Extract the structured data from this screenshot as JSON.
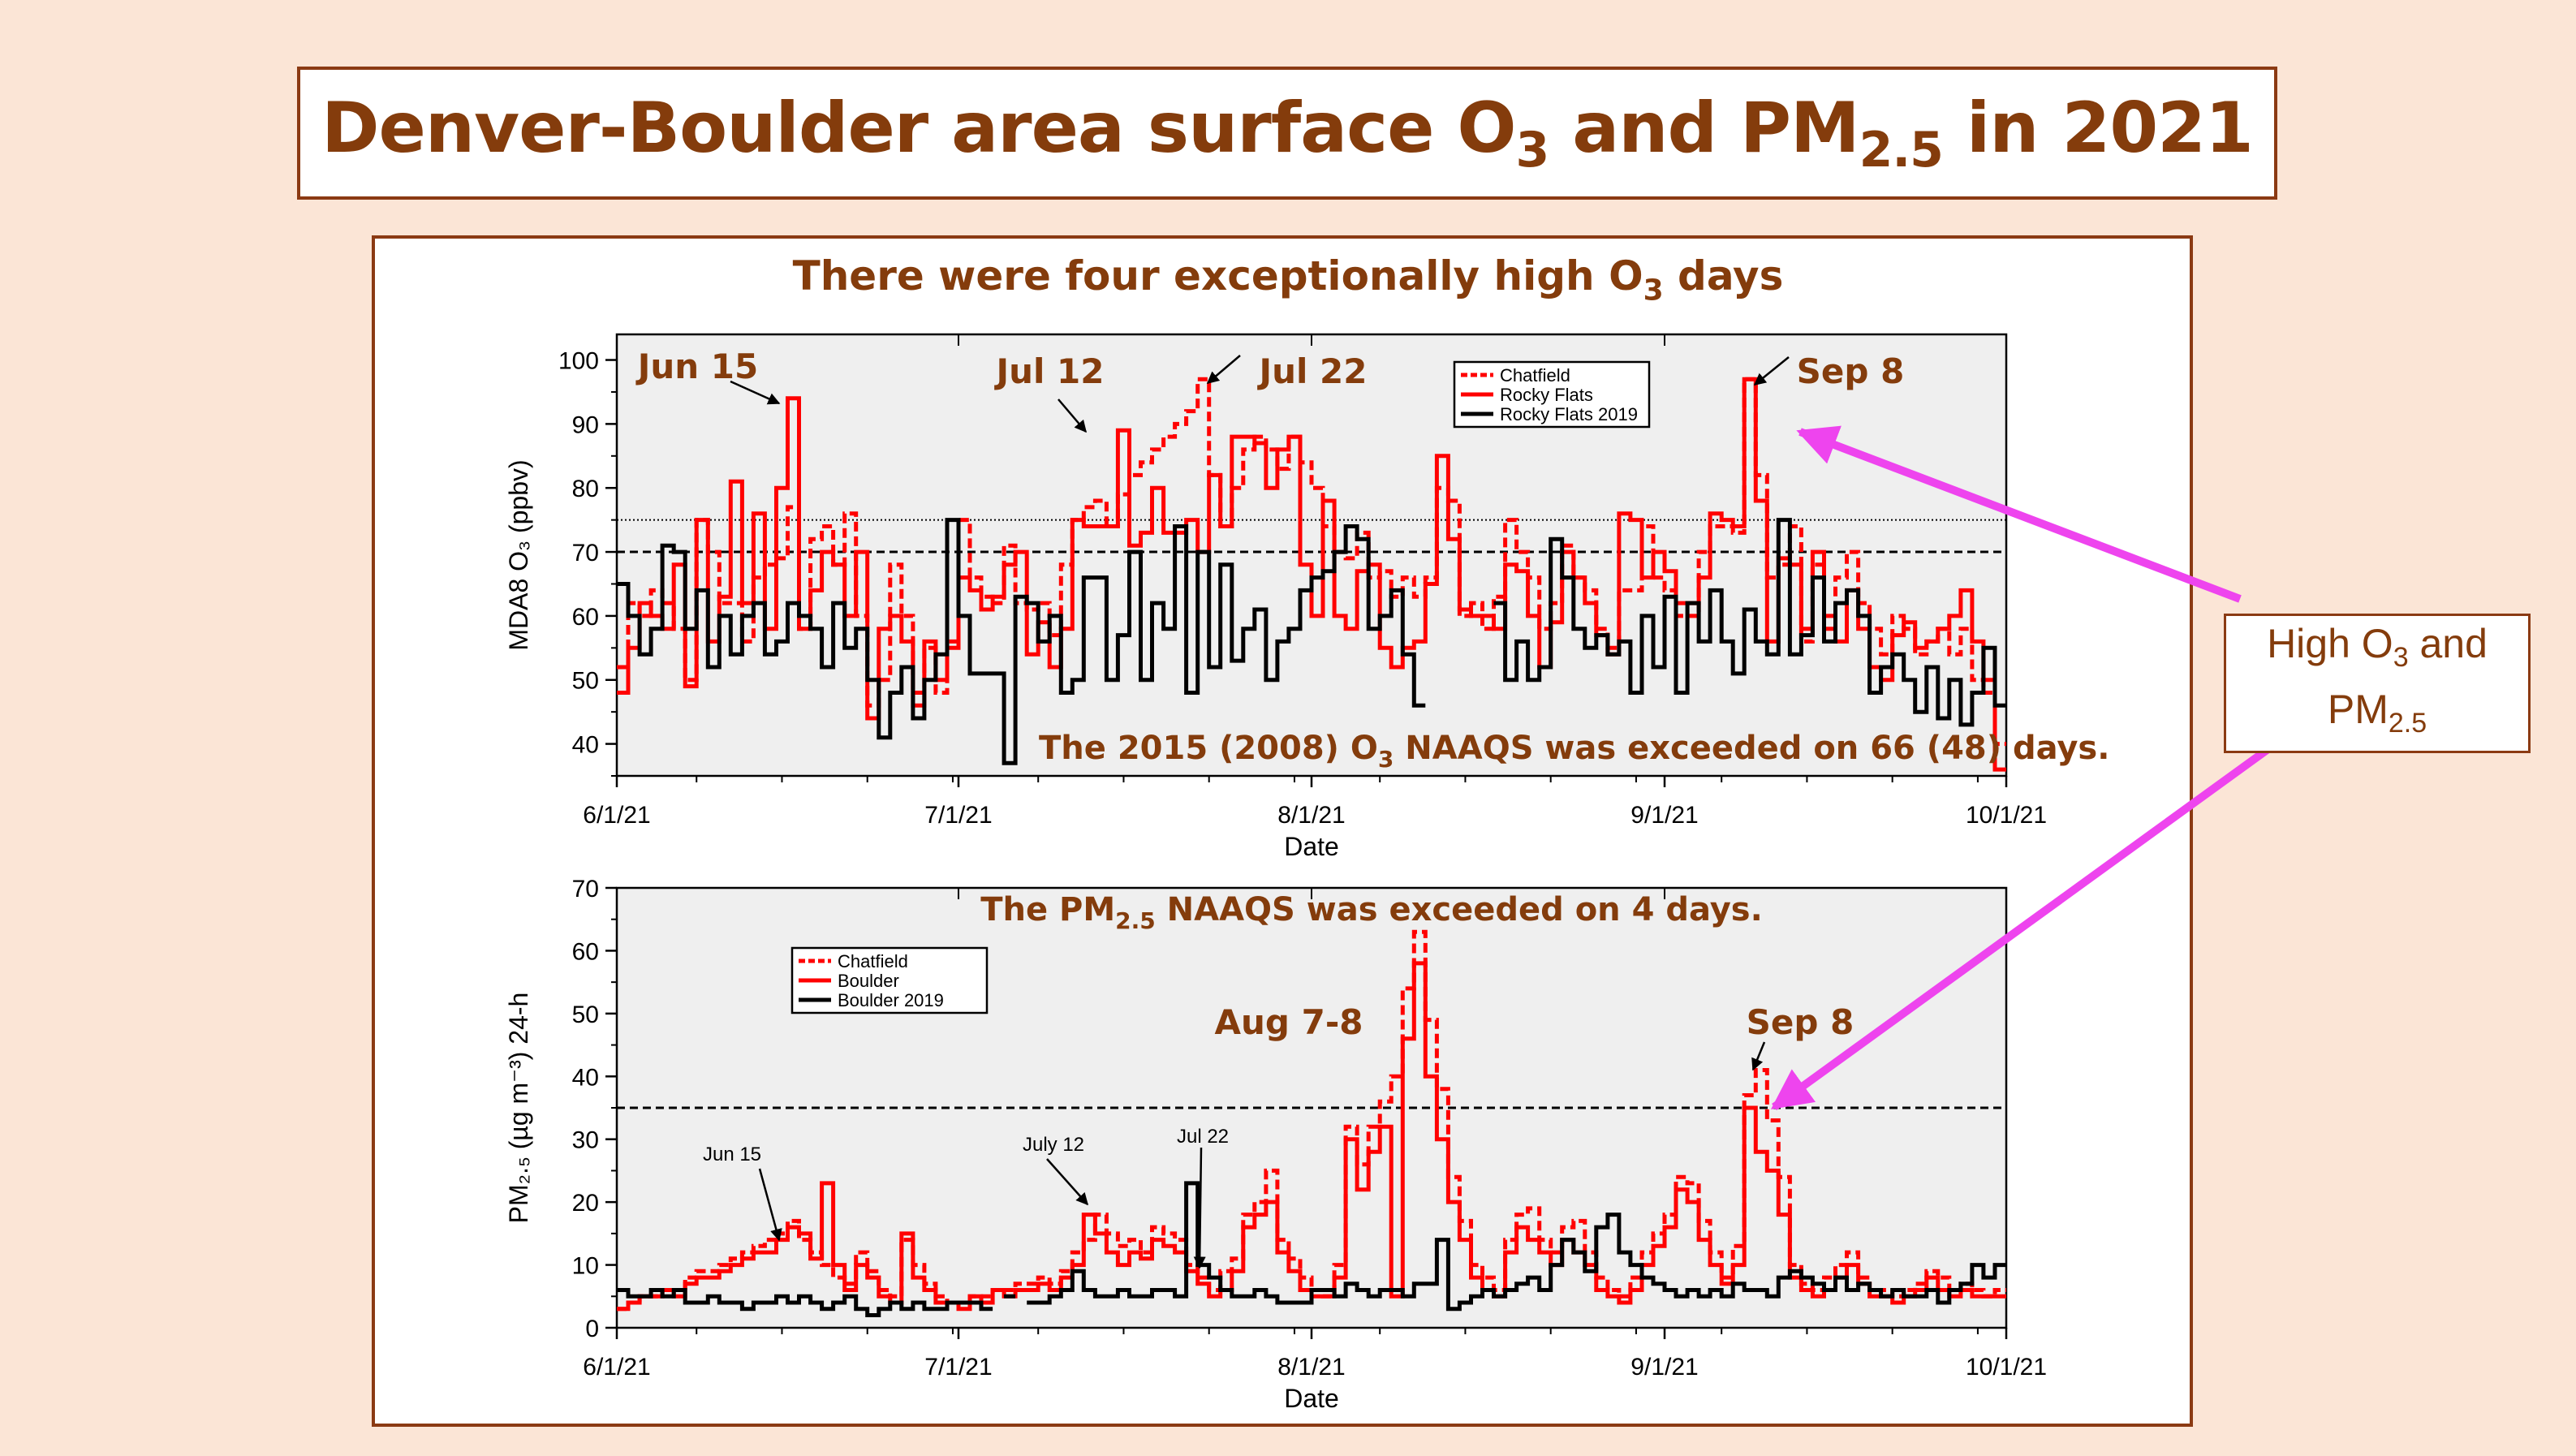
{
  "title": {
    "main": "Denver-Boulder area surface O",
    "sub1": "3",
    "mid": " and PM",
    "sub2": "2.5",
    "end": " in 2021"
  },
  "callout": {
    "line1a": "High O",
    "line1sub": "3",
    "line1b": " and",
    "line2a": "PM",
    "line2sub": "2.5"
  },
  "colors": {
    "accent_text": "#843c0c",
    "red": "#ff0000",
    "black": "#000000",
    "arrow": "#ee44ee",
    "panel_bg": "#efefef"
  },
  "chart_data": [
    {
      "type": "line",
      "title": {
        "a": "There were four exceptionally high O",
        "sub": "3",
        "b": " days"
      },
      "xlabel": "Date",
      "ylabel": "MDA8 O₃ (ppbv)",
      "x_ticks": [
        "6/1/21",
        "7/1/21",
        "8/1/21",
        "9/1/21",
        "10/1/21"
      ],
      "y_ticks": [
        40,
        50,
        60,
        70,
        80,
        90,
        100
      ],
      "ylim": [
        35,
        104
      ],
      "xlim_day": [
        0,
        122
      ],
      "legend": {
        "position": "top-right",
        "entries": [
          "Chatfield",
          "Rocky Flats",
          "Rocky Flats 2019"
        ]
      },
      "reference_lines": [
        {
          "value": 75,
          "style": "dotted"
        },
        {
          "value": 70,
          "style": "dashed"
        }
      ],
      "annotations": [
        {
          "text": "Jun 15",
          "day": 14
        },
        {
          "text": "Jul 12",
          "day": 41
        },
        {
          "text": "Jul 22",
          "day": 51
        },
        {
          "text": "Sep 8",
          "day": 99
        }
      ],
      "note": {
        "a": "The 2015 (2008) O",
        "sub": "3",
        "b": " NAAQS was exceeded on 66 (48) days."
      },
      "series": [
        {
          "name": "Chatfield",
          "style": "red-dashed",
          "values": [
            52,
            62,
            60,
            64,
            62,
            58,
            50,
            75,
            70,
            62,
            62,
            56,
            66,
            68,
            69,
            77,
            58,
            72,
            74,
            68,
            76,
            60,
            46,
            50,
            68,
            60,
            48,
            55,
            48,
            56,
            75,
            66,
            63,
            62,
            71,
            62,
            61,
            62,
            57,
            68,
            75,
            77,
            78,
            74,
            79,
            82,
            84,
            86,
            88,
            90,
            92,
            97,
            82,
            74,
            80,
            86,
            88,
            86,
            83,
            88,
            84,
            80,
            74,
            70,
            69,
            73,
            66,
            67,
            63,
            66,
            63,
            66,
            80,
            78,
            60,
            62,
            58,
            63,
            75,
            70,
            66,
            58,
            62,
            71,
            66,
            64,
            58,
            55,
            64,
            64,
            74,
            66,
            64,
            60,
            60,
            70,
            74,
            74,
            73,
            97,
            82,
            66,
            68,
            74,
            56,
            68,
            58,
            66,
            70,
            62,
            58,
            54,
            60,
            58,
            54,
            56,
            58,
            54,
            58,
            50,
            48,
            40
          ]
        },
        {
          "name": "Rocky Flats",
          "style": "red-solid",
          "values": [
            48,
            55,
            62,
            60,
            58,
            68,
            49,
            75,
            56,
            63,
            81,
            62,
            76,
            58,
            80,
            94,
            58,
            64,
            70,
            68,
            60,
            70,
            44,
            58,
            60,
            56,
            46,
            56,
            50,
            55,
            66,
            64,
            61,
            63,
            68,
            70,
            54,
            59,
            52,
            58,
            75,
            74,
            74,
            74,
            89,
            71,
            73,
            80,
            73,
            73,
            75,
            70,
            82,
            74,
            88,
            88,
            87,
            80,
            86,
            88,
            68,
            60,
            78,
            60,
            58,
            67,
            68,
            55,
            52,
            55,
            56,
            65,
            85,
            72,
            61,
            60,
            60,
            58,
            68,
            67,
            60,
            52,
            59,
            70,
            66,
            62,
            57,
            54,
            76,
            75,
            66,
            70,
            67,
            62,
            62,
            66,
            76,
            75,
            74,
            97,
            78,
            56,
            69,
            68,
            58,
            70,
            60,
            56,
            64,
            58,
            52,
            50,
            57,
            59,
            55,
            56,
            58,
            60,
            64,
            56,
            50,
            36
          ]
        },
        {
          "name": "Rocky Flats 2019",
          "style": "black-solid",
          "values": [
            65,
            60,
            54,
            58,
            71,
            70,
            58,
            64,
            52,
            60,
            54,
            60,
            62,
            54,
            56,
            62,
            60,
            58,
            52,
            62,
            55,
            58,
            50,
            41,
            48,
            52,
            44,
            50,
            54,
            75,
            60,
            51,
            51,
            51,
            37,
            63,
            62,
            56,
            60,
            48,
            50,
            66,
            66,
            50,
            57,
            70,
            50,
            62,
            58,
            74,
            48,
            70,
            52,
            68,
            53,
            58,
            61,
            50,
            56,
            58,
            64,
            66,
            67,
            70,
            74,
            72,
            58,
            60,
            64,
            54,
            46,
            null,
            null,
            null,
            null,
            null,
            null,
            62,
            50,
            56,
            50,
            52,
            72,
            66,
            58,
            55,
            57,
            54,
            56,
            48,
            60,
            52,
            63,
            48,
            62,
            56,
            64,
            56,
            51,
            61,
            56,
            54,
            75,
            54,
            57,
            66,
            56,
            62,
            64,
            60,
            48,
            52,
            54,
            50,
            45,
            52,
            44,
            50,
            43,
            48,
            55,
            46
          ]
        }
      ]
    },
    {
      "type": "line",
      "title": {
        "a": "The PM",
        "sub": "2.5",
        "b": " NAAQS was exceeded on 4 days."
      },
      "xlabel": "Date",
      "ylabel": "PM₂.₅ (µg m⁻³) 24-h",
      "x_ticks": [
        "6/1/21",
        "7/1/21",
        "8/1/21",
        "9/1/21",
        "10/1/21"
      ],
      "y_ticks": [
        0,
        10,
        20,
        30,
        40,
        50,
        60,
        70
      ],
      "ylim": [
        0,
        70
      ],
      "xlim_day": [
        0,
        122
      ],
      "legend": {
        "position": "top-left",
        "entries": [
          "Chatfield",
          "Boulder",
          "Boulder 2019"
        ]
      },
      "reference_lines": [
        {
          "value": 35,
          "style": "dashed"
        }
      ],
      "annotations": [
        {
          "text": "Jun 15",
          "day": 14
        },
        {
          "text": "July 12",
          "day": 41
        },
        {
          "text": "Jul 22",
          "day": 51
        },
        {
          "text": "Aug 7-8",
          "day": 67
        },
        {
          "text": "Sep 8",
          "day": 99
        }
      ],
      "series": [
        {
          "name": "Chatfield",
          "style": "red-dashed",
          "values": [
            3,
            4,
            5,
            5,
            6,
            6,
            8,
            9,
            9,
            10,
            11,
            12,
            13,
            14,
            15,
            17,
            14,
            12,
            10,
            8,
            7,
            12,
            9,
            6,
            5,
            14,
            10,
            7,
            5,
            4,
            4,
            5,
            5,
            6,
            6,
            7,
            7,
            8,
            7,
            9,
            12,
            14,
            18,
            15,
            13,
            14,
            12,
            16,
            15,
            14,
            10,
            8,
            6,
            9,
            11,
            18,
            20,
            25,
            14,
            11,
            8,
            6,
            5,
            10,
            32,
            26,
            32,
            36,
            40,
            54,
            63,
            49,
            38,
            24,
            17,
            10,
            8,
            6,
            14,
            18,
            19,
            14,
            12,
            16,
            17,
            12,
            8,
            6,
            5,
            8,
            12,
            15,
            18,
            24,
            23,
            17,
            12,
            8,
            13,
            37,
            41,
            33,
            24,
            10,
            7,
            6,
            8,
            10,
            12,
            8,
            6,
            6,
            5,
            6,
            7,
            9,
            8,
            6,
            7,
            6,
            5,
            6
          ]
        },
        {
          "name": "Boulder",
          "style": "red-solid",
          "values": [
            3,
            4,
            5,
            5,
            6,
            5,
            7,
            8,
            8,
            9,
            10,
            11,
            12,
            12,
            14,
            16,
            15,
            11,
            23,
            10,
            6,
            10,
            8,
            5,
            4,
            15,
            8,
            6,
            4,
            4,
            3,
            5,
            4,
            6,
            5,
            6,
            6,
            7,
            6,
            8,
            10,
            18,
            15,
            12,
            10,
            12,
            11,
            14,
            13,
            12,
            9,
            7,
            5,
            6,
            9,
            16,
            18,
            20,
            12,
            9,
            6,
            5,
            5,
            8,
            30,
            22,
            28,
            32,
            5,
            46,
            58,
            40,
            30,
            20,
            14,
            8,
            6,
            5,
            12,
            16,
            14,
            12,
            10,
            14,
            12,
            10,
            6,
            5,
            4,
            6,
            10,
            13,
            16,
            22,
            20,
            14,
            10,
            7,
            10,
            35,
            28,
            25,
            18,
            8,
            6,
            5,
            6,
            8,
            10,
            7,
            5,
            5,
            4,
            5,
            6,
            8,
            6,
            5,
            6,
            5,
            5,
            5
          ]
        },
        {
          "name": "Boulder 2019",
          "style": "black-solid",
          "values": [
            6,
            5,
            5,
            6,
            5,
            6,
            4,
            4,
            5,
            4,
            4,
            3,
            4,
            4,
            5,
            4,
            5,
            4,
            3,
            4,
            5,
            3,
            2,
            3,
            4,
            3,
            4,
            3,
            3,
            4,
            4,
            4,
            3,
            null,
            5,
            null,
            4,
            4,
            5,
            6,
            9,
            6,
            5,
            5,
            6,
            5,
            5,
            6,
            6,
            5,
            23,
            10,
            8,
            6,
            5,
            5,
            6,
            5,
            4,
            4,
            4,
            6,
            6,
            5,
            7,
            6,
            5,
            6,
            6,
            5,
            7,
            7,
            14,
            3,
            4,
            5,
            6,
            5,
            6,
            7,
            8,
            6,
            10,
            14,
            12,
            9,
            16,
            18,
            12,
            10,
            8,
            7,
            6,
            5,
            6,
            5,
            6,
            5,
            7,
            6,
            6,
            5,
            8,
            9,
            8,
            7,
            6,
            8,
            6,
            7,
            6,
            5,
            6,
            5,
            5,
            6,
            4,
            6,
            7,
            10,
            8,
            10
          ]
        }
      ]
    }
  ]
}
